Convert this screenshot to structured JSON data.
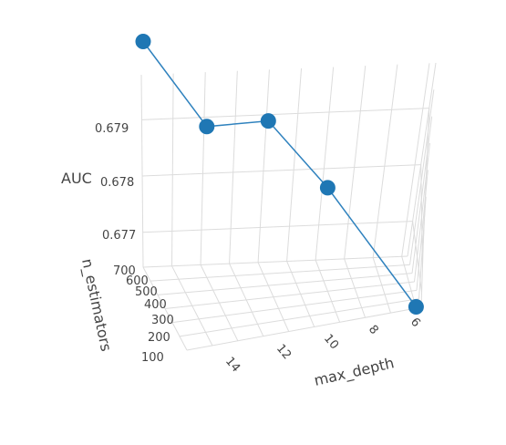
{
  "chart_data": {
    "type": "scatter3d",
    "title": "",
    "axes": {
      "x": {
        "label": "max_depth",
        "ticks": [
          "14",
          "12",
          "10",
          "8",
          "6"
        ]
      },
      "y": {
        "label": "n_estimators",
        "ticks": [
          "100",
          "200",
          "300",
          "400",
          "500",
          "600",
          "700"
        ]
      },
      "z": {
        "label": "AUC",
        "ticks": [
          "0.677",
          "0.678",
          "0.679"
        ]
      }
    },
    "series": [
      {
        "mode": "lines+markers",
        "color": "#1f77b4",
        "points": [
          {
            "max_depth": 15,
            "n_estimators": 700,
            "AUC": 0.6797
          },
          {
            "max_depth": 13,
            "n_estimators": 600,
            "AUC": 0.6786
          },
          {
            "max_depth": 11,
            "n_estimators": 500,
            "AUC": 0.6788
          },
          {
            "max_depth": 9,
            "n_estimators": 400,
            "AUC": 0.6779
          },
          {
            "max_depth": 6,
            "n_estimators": 100,
            "AUC": 0.6764
          }
        ]
      }
    ],
    "grid": true,
    "legend": "none"
  }
}
